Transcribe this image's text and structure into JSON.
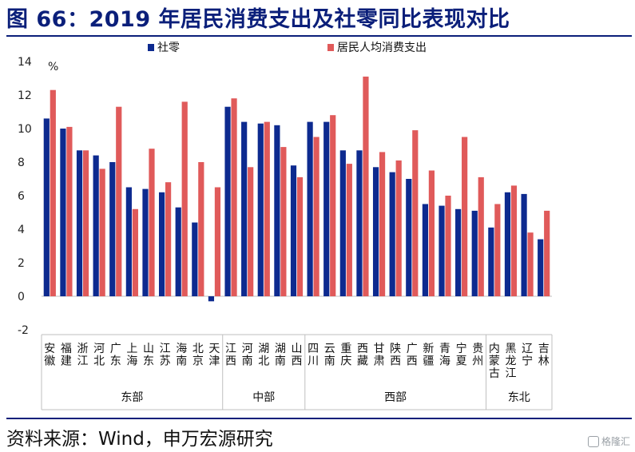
{
  "title": "图 66：2019 年居民消费支出及社零同比表现对比",
  "source": "资料来源：Wind，申万宏源研究",
  "watermark": "格隆汇",
  "colors": {
    "title": "#0b1f7a",
    "series1": "#0d2a8f",
    "series2": "#e05a5a"
  },
  "chart_data": {
    "type": "bar",
    "unit": "%",
    "ylim": [
      -2,
      14
    ],
    "yticks": [
      -2,
      0,
      2,
      4,
      6,
      8,
      10,
      12,
      14
    ],
    "legend_position": "top",
    "categories": [
      "安徽",
      "福建",
      "浙江",
      "河北",
      "广东",
      "上海",
      "山东",
      "江苏",
      "海南",
      "北京",
      "天津",
      "江西",
      "河南",
      "湖北",
      "湖南",
      "山西",
      "四川",
      "云南",
      "重庆",
      "西藏",
      "甘肃",
      "陕西",
      "广西",
      "新疆",
      "青海",
      "宁夏",
      "贵州",
      "内蒙古",
      "黑龙江",
      "辽宁",
      "吉林"
    ],
    "series": [
      {
        "name": "社零",
        "values": [
          10.6,
          10.0,
          8.7,
          8.4,
          8.0,
          6.5,
          6.4,
          6.2,
          5.3,
          4.4,
          -0.3,
          11.3,
          10.4,
          10.3,
          10.2,
          7.8,
          10.4,
          10.4,
          8.7,
          8.7,
          7.7,
          7.4,
          7.0,
          5.5,
          5.4,
          5.2,
          5.1,
          4.1,
          6.2,
          6.1,
          3.4
        ]
      },
      {
        "name": "居民人均消费支出",
        "values": [
          12.3,
          10.1,
          8.7,
          7.6,
          11.3,
          5.2,
          8.8,
          6.8,
          11.6,
          8.0,
          6.5,
          11.8,
          7.7,
          10.4,
          8.9,
          7.1,
          9.5,
          10.8,
          7.9,
          13.1,
          8.6,
          8.1,
          9.9,
          7.5,
          6.0,
          9.5,
          7.1,
          5.5,
          6.6,
          3.8,
          5.1
        ]
      }
    ],
    "groups": [
      {
        "name": "东部",
        "count": 11
      },
      {
        "name": "中部",
        "count": 5
      },
      {
        "name": "西部",
        "count": 11
      },
      {
        "name": "东北",
        "count": 4
      }
    ]
  }
}
